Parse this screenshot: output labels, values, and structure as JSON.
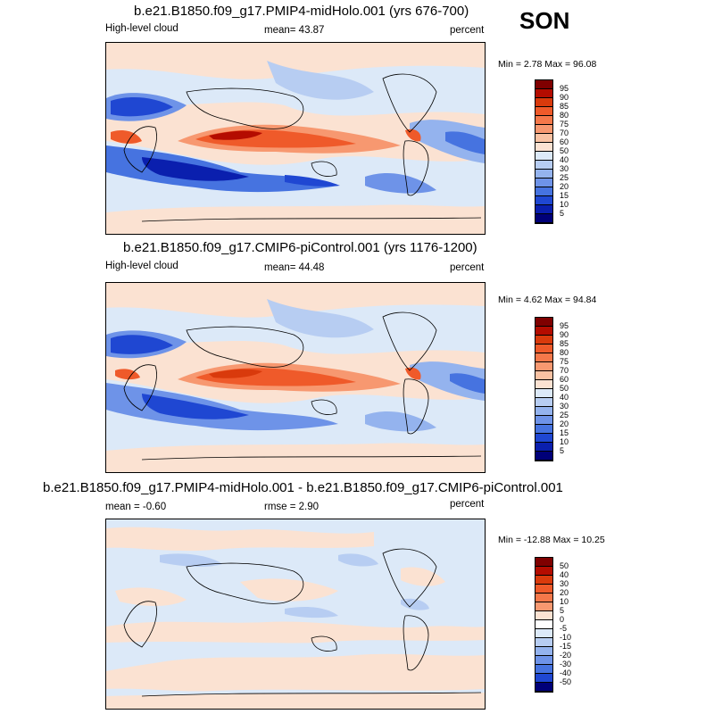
{
  "season": "SON",
  "panels": [
    {
      "title": "b.e21.B1850.f09_g17.PMIP4-midHolo.001 (yrs 676-700)",
      "left_label": "High-level cloud",
      "center_label": "mean=  43.87",
      "right_label": "percent",
      "minmax": "Min =  2.78 Max =  96.08",
      "colorbar_labels": [
        "95",
        "90",
        "85",
        "80",
        "75",
        "70",
        "60",
        "50",
        "40",
        "30",
        "25",
        "20",
        "15",
        "10",
        "5"
      ]
    },
    {
      "title": "b.e21.B1850.f09_g17.CMIP6-piControl.001 (yrs 1176-1200)",
      "left_label": "High-level cloud",
      "center_label": "mean=  44.48",
      "right_label": "percent",
      "minmax": "Min =  4.62 Max =  94.84",
      "colorbar_labels": [
        "95",
        "90",
        "85",
        "80",
        "75",
        "70",
        "60",
        "50",
        "40",
        "30",
        "25",
        "20",
        "15",
        "10",
        "5"
      ]
    },
    {
      "title": "b.e21.B1850.f09_g17.PMIP4-midHolo.001 - b.e21.B1850.f09_g17.CMIP6-piControl.001",
      "left_label": "mean =  -0.60",
      "center_label": "rmse =   2.90",
      "right_label": "percent",
      "minmax": "Min = -12.88 Max =  10.25",
      "colorbar_labels": [
        "50",
        "40",
        "30",
        "20",
        "10",
        "5",
        "0",
        "-5",
        "-10",
        "-15",
        "-20",
        "-30",
        "-40",
        "-50"
      ]
    }
  ],
  "colorbar_colors": {
    "abs": [
      "#7f0000",
      "#b40c00",
      "#d93a0c",
      "#ef5a2a",
      "#f5784a",
      "#f79870",
      "#f9c2a3",
      "#fbe2d2",
      "#dce9f8",
      "#b7cdf2",
      "#94b3ee",
      "#6e93e8",
      "#4673e0",
      "#1f47d2",
      "#0a1fae",
      "#000078"
    ],
    "diff": [
      "#7f0000",
      "#b40c00",
      "#d93a0c",
      "#ef5a2a",
      "#f5784a",
      "#f79870",
      "#fbe2d2",
      "#ffffff",
      "#dce9f8",
      "#b7cdf2",
      "#94b3ee",
      "#6e93e8",
      "#4673e0",
      "#1f47d2",
      "#000078"
    ]
  }
}
